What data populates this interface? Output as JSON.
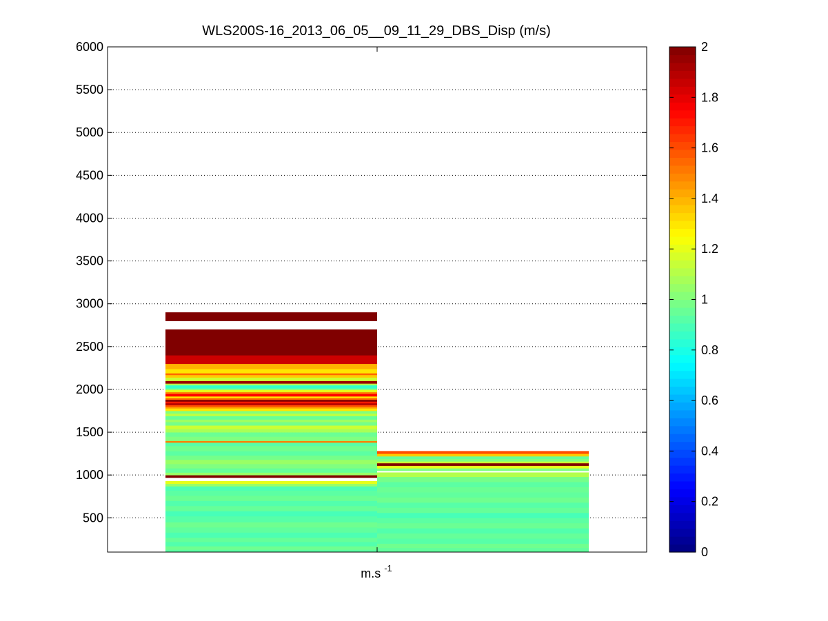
{
  "chart_data": {
    "type": "heatmap",
    "title": "WLS200S-16_2013_06_05__09_11_29_DBS_Disp (m/s)",
    "xlabel_base": "m.s",
    "xlabel_sup": "-1",
    "ylabel": "",
    "ylim": [
      100,
      6000
    ],
    "yticks": [
      500,
      1000,
      1500,
      2000,
      2500,
      3000,
      3500,
      4000,
      4500,
      5000,
      5500,
      6000
    ],
    "ytick_labels": [
      "500",
      "1000",
      "1500",
      "2000",
      "2500",
      "3000",
      "3500",
      "4000",
      "4500",
      "5000",
      "5500",
      "6000"
    ],
    "grid": "y-dotted",
    "colormap": "jet",
    "clim": [
      0,
      2
    ],
    "colorbar_ticks": [
      0,
      0.2,
      0.4,
      0.6,
      0.8,
      1,
      1.2,
      1.4,
      1.6,
      1.8,
      2
    ],
    "colorbar_tick_labels": [
      "0",
      "0.2",
      "0.4",
      "0.6",
      "0.8",
      "1",
      "1.2",
      "1.4",
      "1.6",
      "1.8",
      "2"
    ],
    "columns": [
      {
        "index": 1,
        "segments": [
          [
            100,
            130,
            0.93
          ],
          [
            130,
            170,
            0.97
          ],
          [
            170,
            220,
            0.91
          ],
          [
            220,
            270,
            0.95
          ],
          [
            270,
            330,
            0.9
          ],
          [
            330,
            390,
            0.94
          ],
          [
            390,
            450,
            0.97
          ],
          [
            450,
            520,
            0.92
          ],
          [
            520,
            580,
            0.89
          ],
          [
            580,
            640,
            0.95
          ],
          [
            640,
            700,
            0.91
          ],
          [
            700,
            760,
            0.96
          ],
          [
            760,
            820,
            0.93
          ],
          [
            820,
            870,
            0.9
          ],
          [
            870,
            900,
            1.05
          ],
          [
            900,
            930,
            1.2
          ],
          [
            970,
            1000,
            2.0
          ],
          [
            1000,
            1030,
            1.05
          ],
          [
            1030,
            1080,
            0.95
          ],
          [
            1080,
            1130,
            1.0
          ],
          [
            1130,
            1180,
            1.05
          ],
          [
            1180,
            1230,
            0.98
          ],
          [
            1230,
            1280,
            0.93
          ],
          [
            1280,
            1340,
            0.97
          ],
          [
            1340,
            1380,
            0.92
          ],
          [
            1380,
            1400,
            1.5
          ],
          [
            1400,
            1450,
            1.0
          ],
          [
            1450,
            1500,
            0.96
          ],
          [
            1500,
            1540,
            1.08
          ],
          [
            1540,
            1580,
            1.15
          ],
          [
            1580,
            1620,
            0.98
          ],
          [
            1620,
            1650,
            1.06
          ],
          [
            1650,
            1690,
            0.95
          ],
          [
            1690,
            1720,
            1.12
          ],
          [
            1720,
            1750,
            1.0
          ],
          [
            1750,
            1780,
            1.3
          ],
          [
            1780,
            1800,
            1.45
          ],
          [
            1800,
            1820,
            1.6
          ],
          [
            1820,
            1840,
            1.9
          ],
          [
            1840,
            1860,
            1.7
          ],
          [
            1860,
            1880,
            2.0
          ],
          [
            1880,
            1900,
            1.55
          ],
          [
            1900,
            1920,
            1.3
          ],
          [
            1920,
            1950,
            1.75
          ],
          [
            1950,
            1970,
            1.5
          ],
          [
            1970,
            2000,
            1.2
          ],
          [
            2000,
            2020,
            0.9
          ],
          [
            2020,
            2050,
            0.85
          ],
          [
            2050,
            2070,
            1.1
          ],
          [
            2070,
            2100,
            1.95
          ],
          [
            2100,
            2140,
            1.15
          ],
          [
            2140,
            2170,
            1.35
          ],
          [
            2170,
            2190,
            1.55
          ],
          [
            2190,
            2240,
            1.3
          ],
          [
            2240,
            2300,
            1.4
          ],
          [
            2300,
            2400,
            1.85
          ],
          [
            2400,
            2700,
            2.0
          ],
          [
            2800,
            2900,
            2.0
          ]
        ]
      },
      {
        "index": 2,
        "segments": [
          [
            100,
            150,
            0.94
          ],
          [
            150,
            200,
            0.97
          ],
          [
            200,
            260,
            0.92
          ],
          [
            260,
            320,
            0.95
          ],
          [
            320,
            380,
            0.91
          ],
          [
            380,
            440,
            0.96
          ],
          [
            440,
            500,
            0.93
          ],
          [
            500,
            560,
            0.89
          ],
          [
            560,
            620,
            0.95
          ],
          [
            620,
            680,
            0.92
          ],
          [
            680,
            740,
            0.97
          ],
          [
            740,
            800,
            0.94
          ],
          [
            800,
            860,
            0.96
          ],
          [
            860,
            920,
            0.93
          ],
          [
            920,
            980,
            0.98
          ],
          [
            980,
            1030,
            1.1
          ],
          [
            1050,
            1080,
            1.0
          ],
          [
            1080,
            1110,
            1.2
          ],
          [
            1110,
            1140,
            2.0
          ],
          [
            1140,
            1160,
            1.15
          ],
          [
            1160,
            1190,
            1.0
          ],
          [
            1190,
            1220,
            0.95
          ],
          [
            1220,
            1250,
            1.35
          ],
          [
            1250,
            1280,
            1.6
          ]
        ]
      }
    ]
  }
}
